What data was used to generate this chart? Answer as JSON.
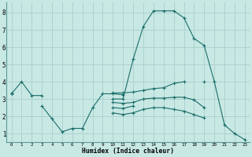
{
  "xlabel": "Humidex (Indice chaleur)",
  "background_color": "#c8e8e4",
  "grid_color": "#a8d0cc",
  "line_color": "#1a6e6a",
  "x_values": [
    0,
    1,
    2,
    3,
    4,
    5,
    6,
    7,
    8,
    9,
    10,
    11,
    12,
    13,
    14,
    15,
    16,
    17,
    18,
    19,
    20,
    21,
    22,
    23
  ],
  "line1_y": [
    3.3,
    4.0,
    3.2,
    3.2,
    null,
    null,
    null,
    null,
    null,
    null,
    3.35,
    3.35,
    3.4,
    3.5,
    3.6,
    3.65,
    3.9,
    4.0,
    null,
    4.0,
    null,
    null,
    null,
    null
  ],
  "line2_y": [
    3.3,
    null,
    null,
    2.6,
    1.85,
    1.1,
    1.3,
    1.3,
    2.5,
    3.3,
    3.3,
    3.25,
    null,
    null,
    null,
    null,
    null,
    null,
    null,
    null,
    null,
    null,
    null,
    null
  ],
  "line3_y": [
    3.3,
    null,
    null,
    null,
    null,
    null,
    null,
    null,
    null,
    null,
    3.0,
    3.0,
    5.3,
    7.2,
    8.1,
    8.1,
    8.1,
    7.7,
    6.5,
    6.1,
    4.0,
    1.5,
    1.0,
    0.65
  ],
  "line4_y": [
    3.3,
    null,
    null,
    null,
    null,
    null,
    null,
    null,
    null,
    null,
    2.8,
    2.75,
    2.8,
    3.0,
    3.05,
    3.05,
    3.1,
    3.1,
    2.95,
    2.5,
    null,
    null,
    null,
    null
  ],
  "line5_y": [
    3.3,
    null,
    null,
    null,
    null,
    null,
    null,
    null,
    null,
    null,
    2.5,
    2.45,
    2.6,
    null,
    null,
    null,
    null,
    null,
    null,
    null,
    null,
    null,
    null,
    null
  ],
  "line_bottom_y": [
    3.3,
    null,
    null,
    null,
    null,
    null,
    null,
    null,
    null,
    null,
    2.2,
    2.1,
    2.2,
    2.4,
    2.5,
    2.5,
    2.4,
    2.3,
    2.1,
    1.9,
    null,
    null,
    null,
    null
  ],
  "ylim": [
    0.5,
    8.6
  ],
  "xlim": [
    -0.5,
    23.5
  ],
  "yticks": [
    1,
    2,
    3,
    4,
    5,
    6,
    7,
    8
  ],
  "xticks": [
    0,
    1,
    2,
    3,
    4,
    5,
    6,
    7,
    8,
    9,
    10,
    11,
    12,
    13,
    14,
    15,
    16,
    17,
    18,
    19,
    20,
    21,
    22,
    23
  ]
}
